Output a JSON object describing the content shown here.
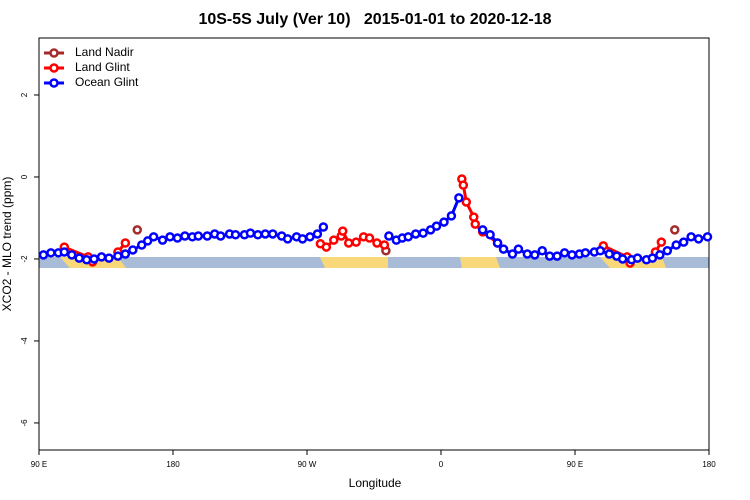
{
  "chart_data": {
    "type": "line",
    "title": "10S-5S July (Ver 10)   2015-01-01 to 2020-12-18",
    "x_label": "Longitude",
    "y_label": "XCO2 - MLO trend (ppm)",
    "xlim": [
      90,
      540
    ],
    "ylim": [
      -6.66,
      3.39
    ],
    "xticks": [
      {
        "value": 90,
        "label": "90 E"
      },
      180,
      {
        "value": 270,
        "label": "90 W"
      },
      {
        "value": 360,
        "label": "0"
      },
      {
        "value": 450,
        "label": "90 E"
      },
      {
        "value": 540,
        "label": "180"
      }
    ],
    "yticks": [
      -6,
      -4,
      -2,
      0,
      2
    ],
    "legend": "top-left",
    "series": [
      {
        "name": "Land Nadir",
        "color": "#a52a2a",
        "x": [
          156,
          null,
          323,
          null,
          517
        ],
        "values": [
          -1.29,
          null,
          -1.8,
          null,
          -1.29
        ]
      },
      {
        "name": "Land Glint",
        "color": "#ff0000",
        "x": [
          107,
          123,
          126,
          null,
          143,
          148,
          null,
          279,
          283,
          288,
          293,
          294,
          298,
          303,
          308,
          312,
          317,
          322,
          null,
          374,
          375,
          377,
          382,
          383,
          388,
          398,
          null,
          469,
          485,
          487,
          null,
          504,
          508
        ],
        "values": [
          -1.71,
          -1.95,
          -2.07,
          null,
          -1.83,
          -1.61,
          null,
          -1.63,
          -1.71,
          -1.54,
          -1.44,
          -1.32,
          -1.61,
          -1.59,
          -1.46,
          -1.49,
          -1.61,
          -1.66,
          null,
          -0.05,
          -0.2,
          -0.61,
          -0.98,
          -1.15,
          -1.34,
          -1.61,
          null,
          -1.68,
          -1.95,
          -2.1,
          null,
          -1.83,
          -1.59
        ]
      },
      {
        "name": "Ocean Glint",
        "color": "#0000ff",
        "x": [
          93,
          98,
          103,
          107,
          112,
          117,
          122,
          127,
          132,
          137,
          143,
          148,
          153,
          159,
          163,
          167,
          173,
          178,
          183,
          188,
          193,
          197,
          203,
          208,
          212,
          218,
          222,
          228,
          232,
          237,
          242,
          247,
          253,
          257,
          263,
          267,
          272,
          277,
          281,
          null,
          325,
          330,
          334,
          338,
          343,
          348,
          353,
          357,
          362,
          367,
          372,
          null,
          388,
          393,
          398,
          402,
          408,
          412,
          418,
          423,
          428,
          433,
          438,
          443,
          448,
          453,
          457,
          463,
          467,
          473,
          478,
          482,
          488,
          492,
          498,
          502,
          507,
          512,
          518,
          523,
          528,
          533,
          539
        ],
        "values": [
          -1.9,
          -1.85,
          -1.85,
          -1.83,
          -1.9,
          -1.98,
          -2.02,
          -2.0,
          -1.95,
          -1.98,
          -1.93,
          -1.88,
          -1.78,
          -1.66,
          -1.56,
          -1.46,
          -1.54,
          -1.46,
          -1.49,
          -1.44,
          -1.46,
          -1.44,
          -1.44,
          -1.39,
          -1.44,
          -1.39,
          -1.41,
          -1.41,
          -1.37,
          -1.41,
          -1.39,
          -1.39,
          -1.44,
          -1.51,
          -1.46,
          -1.51,
          -1.46,
          -1.39,
          -1.22,
          null,
          -1.44,
          -1.54,
          -1.49,
          -1.46,
          -1.39,
          -1.37,
          -1.29,
          -1.2,
          -1.1,
          -0.95,
          -0.51,
          null,
          -1.29,
          -1.41,
          -1.61,
          -1.76,
          -1.88,
          -1.76,
          -1.88,
          -1.9,
          -1.8,
          -1.93,
          -1.93,
          -1.85,
          -1.9,
          -1.88,
          -1.85,
          -1.83,
          -1.8,
          -1.88,
          -1.93,
          -2.0,
          -2.02,
          -1.98,
          -2.02,
          -1.98,
          -1.9,
          -1.8,
          -1.66,
          -1.59,
          -1.46,
          -1.51,
          -1.46
        ]
      }
    ]
  }
}
